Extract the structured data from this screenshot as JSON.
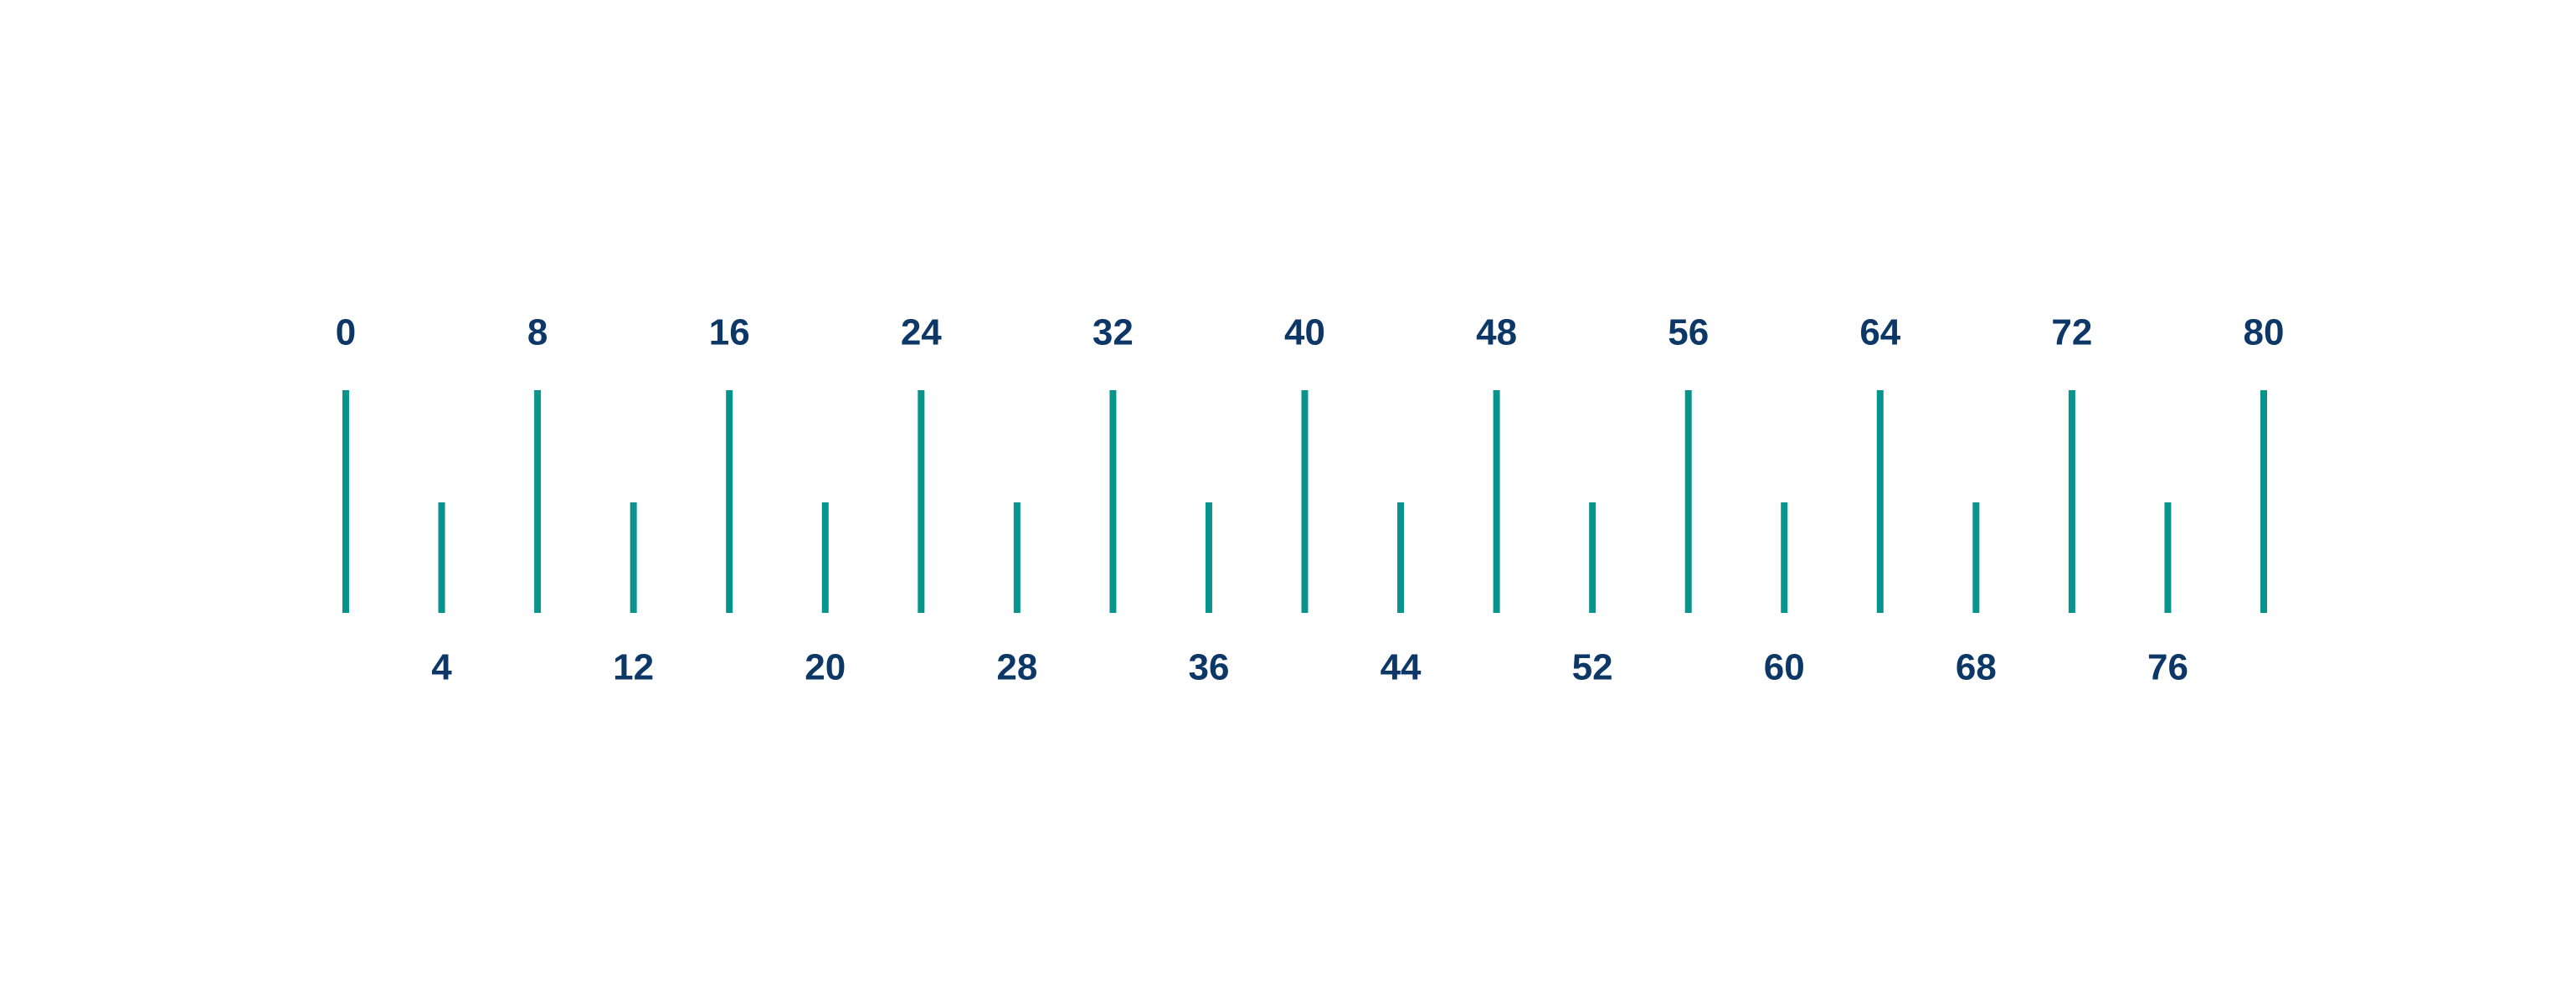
{
  "scale": {
    "colors": {
      "tick": "#08948c",
      "label": "#0c3767",
      "background": "#ffffff"
    },
    "ticks": [
      {
        "value": 0,
        "label": "0",
        "major": true
      },
      {
        "value": 4,
        "label": "4",
        "major": false
      },
      {
        "value": 8,
        "label": "8",
        "major": true
      },
      {
        "value": 12,
        "label": "12",
        "major": false
      },
      {
        "value": 16,
        "label": "16",
        "major": true
      },
      {
        "value": 20,
        "label": "20",
        "major": false
      },
      {
        "value": 24,
        "label": "24",
        "major": true
      },
      {
        "value": 28,
        "label": "28",
        "major": false
      },
      {
        "value": 32,
        "label": "32",
        "major": true
      },
      {
        "value": 36,
        "label": "36",
        "major": false
      },
      {
        "value": 40,
        "label": "40",
        "major": true
      },
      {
        "value": 44,
        "label": "44",
        "major": false
      },
      {
        "value": 48,
        "label": "48",
        "major": true
      },
      {
        "value": 52,
        "label": "52",
        "major": false
      },
      {
        "value": 56,
        "label": "56",
        "major": true
      },
      {
        "value": 60,
        "label": "60",
        "major": false
      },
      {
        "value": 64,
        "label": "64",
        "major": true
      },
      {
        "value": 68,
        "label": "68",
        "major": false
      },
      {
        "value": 72,
        "label": "72",
        "major": true
      },
      {
        "value": 76,
        "label": "76",
        "major": false
      },
      {
        "value": 80,
        "label": "80",
        "major": true
      }
    ]
  }
}
